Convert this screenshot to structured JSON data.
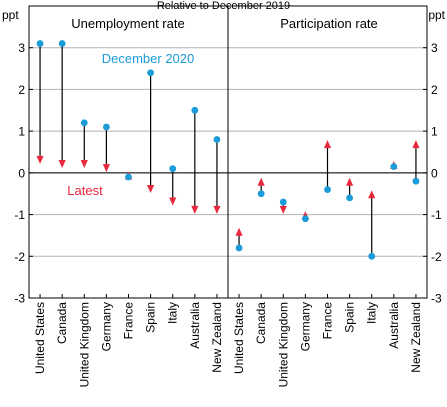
{
  "chart_data": {
    "type": "scatter",
    "title": "Relative to December 2019",
    "unit": "ppt",
    "ylim": [
      -3,
      4
    ],
    "yticks": [
      -3,
      -2,
      -1,
      0,
      1,
      2,
      3
    ],
    "grid": true,
    "colors": {
      "december": "#1b9bd7",
      "latest": "#e8283c",
      "connector": "#000000"
    },
    "annotations": {
      "december": "December 2020",
      "latest": "Latest"
    },
    "panels": [
      {
        "title": "Unemployment rate",
        "categories": [
          "United States",
          "Canada",
          "United Kingdom",
          "Germany",
          "France",
          "Spain",
          "Italy",
          "Australia",
          "New Zealand"
        ],
        "december_2020": [
          3.1,
          3.1,
          1.2,
          1.1,
          -0.1,
          2.4,
          0.1,
          1.5,
          0.8
        ],
        "latest": [
          0.3,
          0.2,
          0.2,
          0.1,
          -0.05,
          -0.4,
          -0.7,
          -0.9,
          -0.9
        ]
      },
      {
        "title": "Participation rate",
        "categories": [
          "United States",
          "Canada",
          "United Kingdom",
          "Germany",
          "France",
          "Spain",
          "Italy",
          "Australia",
          "New Zealand"
        ],
        "december_2020": [
          -1.8,
          -0.5,
          -0.7,
          -1.1,
          -0.4,
          -0.6,
          -2.0,
          0.15,
          -0.2
        ],
        "latest": [
          -1.4,
          -0.2,
          -0.9,
          -1.0,
          0.7,
          -0.2,
          -0.5,
          0.2,
          0.7
        ]
      }
    ]
  }
}
